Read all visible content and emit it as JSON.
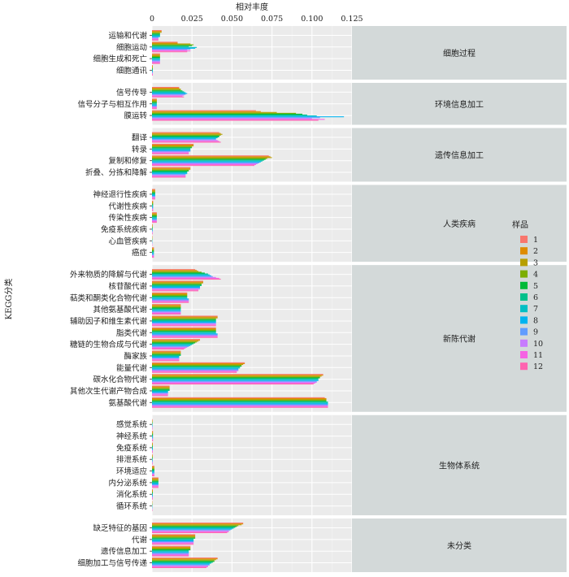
{
  "chart_data": {
    "type": "bar",
    "orientation": "horizontal",
    "xlabel": "相对丰度",
    "ylabel": "KEGG分类",
    "xlim": [
      0,
      0.125
    ],
    "xticks": [
      "0",
      "0.025",
      "0.050",
      "0.075",
      "0.100",
      "0.125"
    ],
    "xtick_values": [
      0,
      0.025,
      0.05,
      0.075,
      0.1,
      0.125
    ],
    "legend_title": "样品",
    "legend_position": "right",
    "series_names": [
      "1",
      "2",
      "3",
      "4",
      "5",
      "6",
      "7",
      "8",
      "9",
      "10",
      "11",
      "12"
    ],
    "colors": [
      "#F8766D",
      "#DE8C00",
      "#B79F00",
      "#7CAE00",
      "#00BA38",
      "#00C08B",
      "#00BFC4",
      "#00B4F0",
      "#619CFF",
      "#C77CFF",
      "#F564E3",
      "#FF64B0"
    ],
    "groups": [
      {
        "name": "细胞过程",
        "categories": [
          {
            "label": "运输和代谢",
            "values": [
              0.006,
              0.006,
              0.006,
              0.005,
              0.005,
              0.005,
              0.005,
              0.005,
              0.004,
              0.004,
              0.004,
              0.004
            ]
          },
          {
            "label": "细胞运动",
            "values": [
              0.016,
              0.016,
              0.024,
              0.026,
              0.025,
              0.023,
              0.028,
              0.027,
              0.024,
              0.022,
              0.024,
              0.022
            ]
          },
          {
            "label": "细胞生成和死亡",
            "values": [
              0.005,
              0.005,
              0.005,
              0.005,
              0.005,
              0.005,
              0.005,
              0.005,
              0.005,
              0.005,
              0.005,
              0.005
            ]
          },
          {
            "label": "细胞通讯",
            "values": [
              0.0005,
              0.0005,
              0.0005,
              0.0005,
              0.0005,
              0.0005,
              0.0005,
              0.0005,
              0.0005,
              0.0005,
              0.0005,
              0.0005
            ]
          }
        ]
      },
      {
        "name": "环境信息加工",
        "categories": [
          {
            "label": "信号传导",
            "values": [
              0.017,
              0.017,
              0.018,
              0.018,
              0.019,
              0.02,
              0.021,
              0.022,
              0.021,
              0.02,
              0.019,
              0.02
            ]
          },
          {
            "label": "信号分子与相互作用",
            "values": [
              0.003,
              0.003,
              0.003,
              0.003,
              0.003,
              0.003,
              0.003,
              0.003,
              0.003,
              0.003,
              0.003,
              0.003
            ]
          },
          {
            "label": "膜运转",
            "values": [
              0.065,
              0.068,
              0.078,
              0.09,
              0.094,
              0.097,
              0.103,
              0.12,
              0.105,
              0.1,
              0.108,
              0.104
            ]
          }
        ]
      },
      {
        "name": "遗传信息加工",
        "categories": [
          {
            "label": "翻译",
            "values": [
              0.042,
              0.043,
              0.044,
              0.043,
              0.042,
              0.042,
              0.041,
              0.04,
              0.04,
              0.041,
              0.042,
              0.043
            ]
          },
          {
            "label": "转录",
            "values": [
              0.026,
              0.026,
              0.026,
              0.025,
              0.025,
              0.024,
              0.024,
              0.024,
              0.024,
              0.023,
              0.023,
              0.023
            ]
          },
          {
            "label": "复制和修复",
            "values": [
              0.073,
              0.074,
              0.075,
              0.072,
              0.071,
              0.07,
              0.069,
              0.068,
              0.067,
              0.066,
              0.065,
              0.064
            ]
          },
          {
            "label": "折叠、分拣和降解",
            "values": [
              0.024,
              0.024,
              0.024,
              0.023,
              0.023,
              0.022,
              0.022,
              0.022,
              0.021,
              0.021,
              0.021,
              0.021
            ]
          }
        ]
      },
      {
        "name": "人类疾病",
        "categories": [
          {
            "label": "神经退行性疾病",
            "values": [
              0.002,
              0.002,
              0.002,
              0.002,
              0.002,
              0.002,
              0.002,
              0.002,
              0.002,
              0.002,
              0.002,
              0.002
            ]
          },
          {
            "label": "代谢性疾病",
            "values": [
              0.0007,
              0.0007,
              0.0007,
              0.0007,
              0.0007,
              0.0007,
              0.0007,
              0.0007,
              0.0007,
              0.0007,
              0.0007,
              0.0007
            ]
          },
          {
            "label": "传染性疾病",
            "values": [
              0.003,
              0.003,
              0.003,
              0.003,
              0.003,
              0.003,
              0.003,
              0.003,
              0.003,
              0.003,
              0.003,
              0.003
            ]
          },
          {
            "label": "免疫系统疾病",
            "values": [
              0.0004,
              0.0004,
              0.0004,
              0.0004,
              0.0004,
              0.0004,
              0.0004,
              0.0004,
              0.0004,
              0.0004,
              0.0004,
              0.0004
            ]
          },
          {
            "label": "心血管疾病",
            "values": [
              0.0002,
              0.0002,
              0.0002,
              0.0002,
              0.0002,
              0.0002,
              0.0002,
              0.0002,
              0.0002,
              0.0002,
              0.0002,
              0.0002
            ]
          },
          {
            "label": "癌症",
            "values": [
              0.0012,
              0.0012,
              0.0012,
              0.0012,
              0.0012,
              0.0012,
              0.0012,
              0.0012,
              0.0012,
              0.0012,
              0.0012,
              0.0012
            ]
          }
        ]
      },
      {
        "name": "新陈代谢",
        "categories": [
          {
            "label": "外来物质的降解与代谢",
            "values": [
              0.027,
              0.028,
              0.029,
              0.031,
              0.033,
              0.035,
              0.036,
              0.037,
              0.038,
              0.04,
              0.042,
              0.043
            ]
          },
          {
            "label": "核苷酸代谢",
            "values": [
              0.032,
              0.032,
              0.032,
              0.031,
              0.031,
              0.031,
              0.03,
              0.03,
              0.03,
              0.03,
              0.029,
              0.029
            ]
          },
          {
            "label": "萜类和酮类化合物代谢",
            "values": [
              0.022,
              0.022,
              0.022,
              0.022,
              0.022,
              0.022,
              0.022,
              0.023,
              0.023,
              0.023,
              0.023,
              0.023
            ]
          },
          {
            "label": "其他氨基酸代谢",
            "values": [
              0.018,
              0.018,
              0.018,
              0.018,
              0.018,
              0.018,
              0.018,
              0.018,
              0.018,
              0.018,
              0.018,
              0.018
            ]
          },
          {
            "label": "辅助因子和维生素代谢",
            "values": [
              0.041,
              0.041,
              0.041,
              0.04,
              0.04,
              0.04,
              0.04,
              0.04,
              0.04,
              0.04,
              0.04,
              0.04
            ]
          },
          {
            "label": "脂类代谢",
            "values": [
              0.04,
              0.04,
              0.04,
              0.04,
              0.04,
              0.04,
              0.04,
              0.041,
              0.041,
              0.041,
              0.041,
              0.041
            ]
          },
          {
            "label": "糖链的生物合成与代谢",
            "values": [
              0.03,
              0.03,
              0.029,
              0.028,
              0.027,
              0.026,
              0.025,
              0.024,
              0.023,
              0.022,
              0.021,
              0.02
            ]
          },
          {
            "label": "酶家族",
            "values": [
              0.018,
              0.018,
              0.018,
              0.018,
              0.018,
              0.018,
              0.017,
              0.017,
              0.017,
              0.017,
              0.017,
              0.017
            ]
          },
          {
            "label": "能量代谢",
            "values": [
              0.058,
              0.058,
              0.057,
              0.056,
              0.056,
              0.055,
              0.055,
              0.054,
              0.054,
              0.054,
              0.053,
              0.053
            ]
          },
          {
            "label": "碳水化合物代谢",
            "values": [
              0.107,
              0.107,
              0.106,
              0.105,
              0.105,
              0.104,
              0.104,
              0.104,
              0.103,
              0.103,
              0.102,
              0.101
            ]
          },
          {
            "label": "其他次生代谢产物合成",
            "values": [
              0.011,
              0.011,
              0.011,
              0.011,
              0.011,
              0.011,
              0.01,
              0.01,
              0.01,
              0.01,
              0.01,
              0.01
            ]
          },
          {
            "label": "氨基酸代谢",
            "values": [
              0.108,
              0.109,
              0.109,
              0.109,
              0.109,
              0.11,
              0.11,
              0.11,
              0.11,
              0.11,
              0.11,
              0.11
            ]
          }
        ]
      },
      {
        "name": "生物体系统",
        "categories": [
          {
            "label": "感觉系统",
            "values": [
              0.0003,
              0.0003,
              0.0003,
              0.0003,
              0.0003,
              0.0003,
              0.0003,
              0.0003,
              0.0003,
              0.0003,
              0.0003,
              0.0003
            ]
          },
          {
            "label": "神经系统",
            "values": [
              0.0006,
              0.0006,
              0.0006,
              0.0006,
              0.0006,
              0.0006,
              0.0006,
              0.0006,
              0.0006,
              0.0006,
              0.0006,
              0.0006
            ]
          },
          {
            "label": "免疫系统",
            "values": [
              0.0005,
              0.0005,
              0.0005,
              0.0005,
              0.0005,
              0.0005,
              0.0005,
              0.0005,
              0.0005,
              0.0005,
              0.0005,
              0.0005
            ]
          },
          {
            "label": "排泄系统",
            "values": [
              0.0004,
              0.0004,
              0.0004,
              0.0004,
              0.0004,
              0.0004,
              0.0004,
              0.0004,
              0.0004,
              0.0004,
              0.0004,
              0.0004
            ]
          },
          {
            "label": "环境适应",
            "values": [
              0.0015,
              0.0015,
              0.0015,
              0.0015,
              0.0015,
              0.0015,
              0.0015,
              0.0015,
              0.0015,
              0.0015,
              0.0015,
              0.0015
            ]
          },
          {
            "label": "内分泌系统",
            "values": [
              0.004,
              0.004,
              0.004,
              0.004,
              0.004,
              0.004,
              0.004,
              0.004,
              0.004,
              0.004,
              0.004,
              0.004
            ]
          },
          {
            "label": "消化系统",
            "values": [
              0.0005,
              0.0005,
              0.0005,
              0.0005,
              0.0005,
              0.0005,
              0.0005,
              0.0005,
              0.0005,
              0.0005,
              0.0005,
              0.0005
            ]
          },
          {
            "label": "循环系统",
            "values": [
              0.0002,
              0.0002,
              0.0002,
              0.0002,
              0.0002,
              0.0002,
              0.0002,
              0.0002,
              0.0002,
              0.0002,
              0.0002,
              0.0002
            ]
          }
        ]
      },
      {
        "name": "未分类",
        "categories": [
          {
            "label": "缺乏特征的基因",
            "values": [
              0.057,
              0.057,
              0.056,
              0.054,
              0.053,
              0.052,
              0.051,
              0.05,
              0.049,
              0.048,
              0.048,
              0.047
            ]
          },
          {
            "label": "代谢",
            "values": [
              0.027,
              0.027,
              0.027,
              0.027,
              0.027,
              0.026,
              0.026,
              0.026,
              0.026,
              0.026,
              0.026,
              0.026
            ]
          },
          {
            "label": "遗传信息加工",
            "values": [
              0.024,
              0.024,
              0.024,
              0.024,
              0.024,
              0.023,
              0.023,
              0.023,
              0.023,
              0.023,
              0.023,
              0.023
            ]
          },
          {
            "label": "细胞加工与信号传递",
            "values": [
              0.041,
              0.041,
              0.04,
              0.039,
              0.039,
              0.038,
              0.037,
              0.036,
              0.036,
              0.035,
              0.035,
              0.034
            ]
          }
        ]
      }
    ]
  }
}
